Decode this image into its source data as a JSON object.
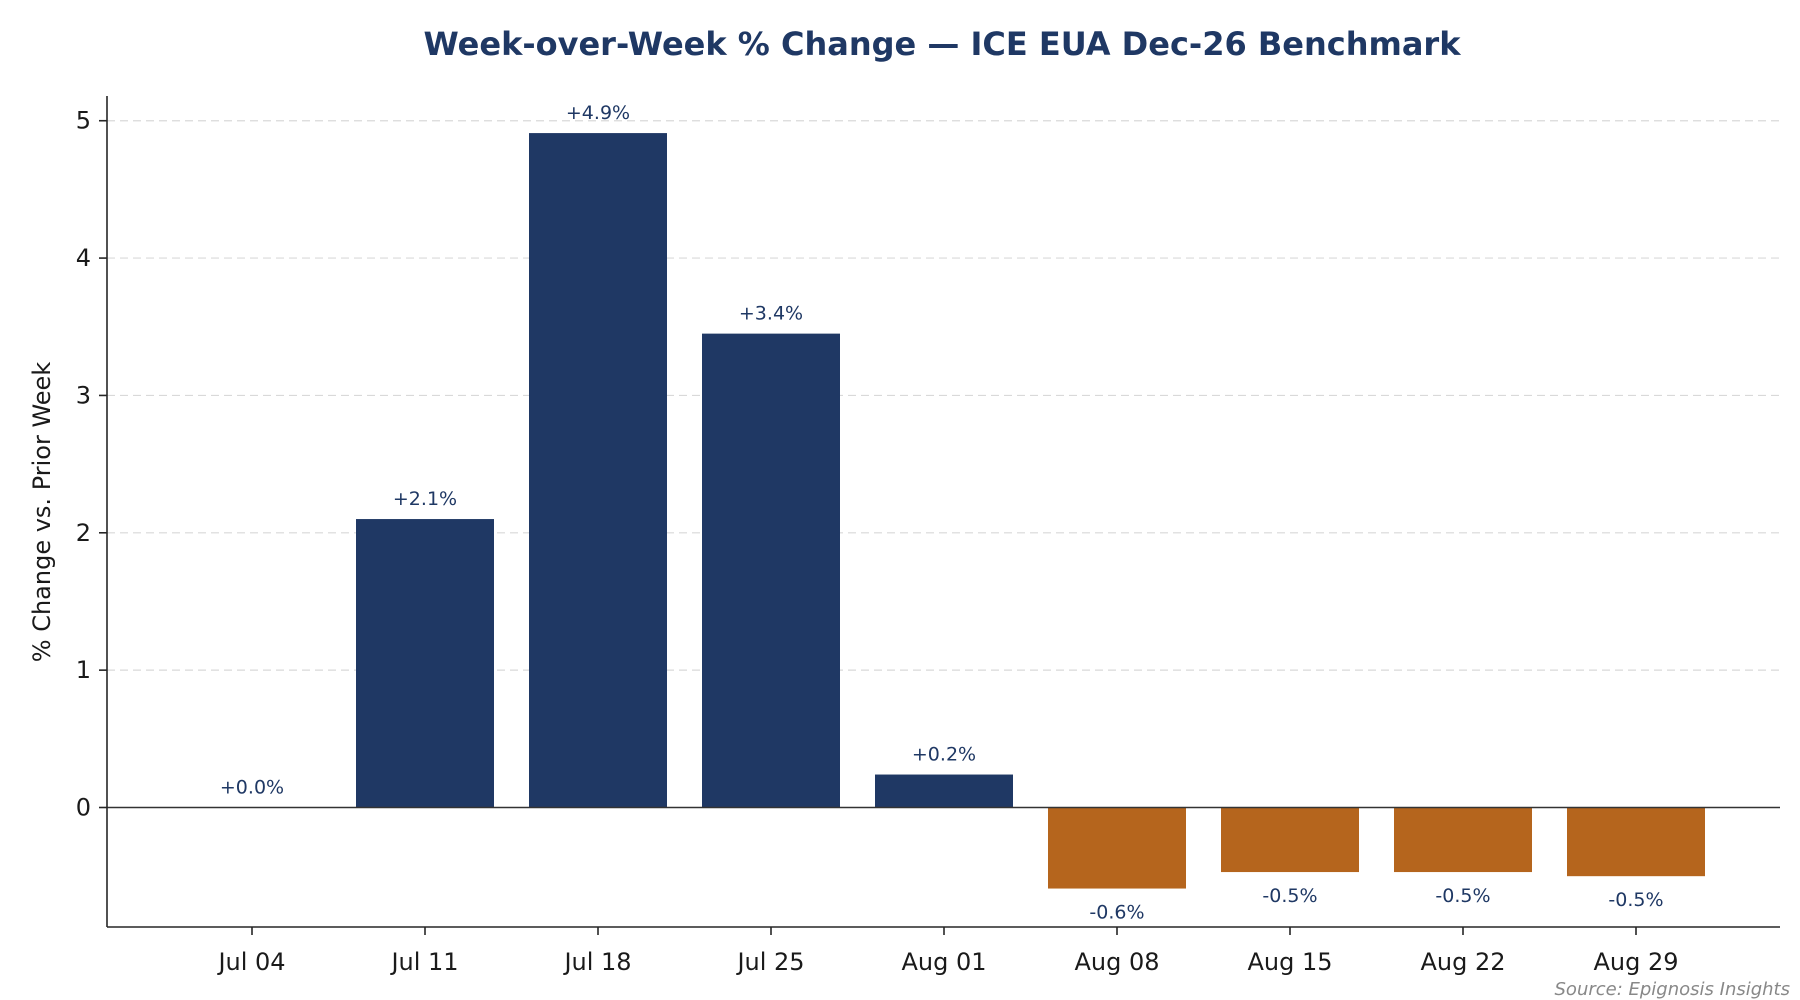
{
  "chart_data": {
    "type": "bar",
    "title": "Week-over-Week % Change — ICE EUA Dec-26 Benchmark",
    "xlabel": "",
    "ylabel": "% Change vs. Prior Week",
    "categories": [
      "Jul 04",
      "Jul 11",
      "Jul 18",
      "Jul 25",
      "Aug 01",
      "Aug 08",
      "Aug 15",
      "Aug 22",
      "Aug 29"
    ],
    "values": [
      0.0,
      2.1,
      4.91,
      3.45,
      0.24,
      -0.59,
      -0.47,
      -0.47,
      -0.5
    ],
    "data_labels": [
      "+0.0%",
      "+2.1%",
      "+4.9%",
      "+3.4%",
      "+0.2%",
      "-0.6%",
      "-0.5%",
      "-0.5%",
      "-0.5%"
    ],
    "ylim": [
      -0.87,
      5.18
    ],
    "yticks": [
      0,
      1,
      2,
      3,
      4,
      5
    ],
    "grid": "horizontal dashed",
    "legend": "none",
    "colors": {
      "positive": "#1f3864",
      "negative": "#b5651d"
    },
    "source": "Source: Epignosis Insights"
  }
}
